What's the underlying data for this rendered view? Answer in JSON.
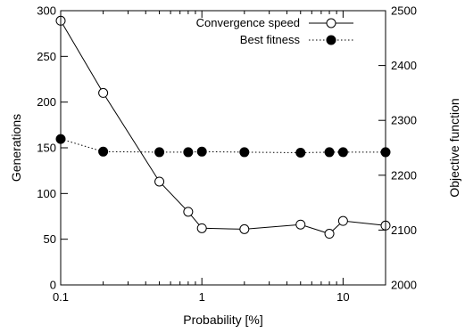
{
  "chart_data": {
    "type": "line",
    "xscale": "log",
    "xlim": [
      0.1,
      20
    ],
    "xlabel": "Probability [%]",
    "xticks": [
      0.1,
      1,
      10
    ],
    "xtick_labels": [
      "0.1",
      "1",
      "10"
    ],
    "left_axis": {
      "label": "Generations",
      "ylim": [
        0,
        300
      ],
      "ticks": [
        0,
        50,
        100,
        150,
        200,
        250,
        300
      ],
      "tick_labels": [
        "0",
        "50",
        "100",
        "150",
        "200",
        "250",
        "300"
      ]
    },
    "right_axis": {
      "label": "Objective function",
      "ylim": [
        2000,
        2500
      ],
      "ticks": [
        2000,
        2100,
        2200,
        2300,
        2400,
        2500
      ],
      "tick_labels": [
        "2000",
        "2100",
        "2200",
        "2300",
        "2400",
        "2500"
      ]
    },
    "legend_position": "top-right",
    "grid": false,
    "series": [
      {
        "name": "Convergence speed",
        "axis": "left",
        "line_style": "solid",
        "marker": "open-circle",
        "color": "#000000",
        "x": [
          0.1,
          0.2,
          0.5,
          0.8,
          1,
          2,
          5,
          8,
          10,
          20
        ],
        "y": [
          289,
          210,
          113,
          80,
          62,
          61,
          66,
          56,
          70,
          65
        ]
      },
      {
        "name": "Best fitness",
        "axis": "right",
        "line_style": "dotted",
        "marker": "filled-circle",
        "color": "#000000",
        "x": [
          0.1,
          0.2,
          0.5,
          0.8,
          1,
          2,
          5,
          8,
          10,
          20
        ],
        "y": [
          2266,
          2243,
          2242,
          2242,
          2243,
          2242,
          2241,
          2242,
          2242,
          2242
        ]
      }
    ]
  }
}
